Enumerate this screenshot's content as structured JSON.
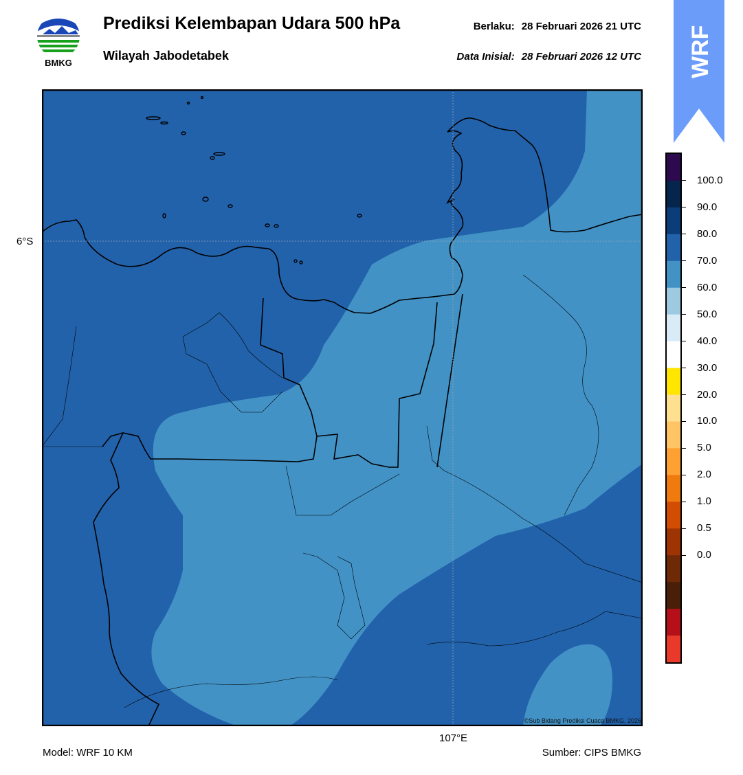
{
  "header": {
    "title": "Prediksi Kelembapan Udara 500 hPa",
    "subtitle": "Wilayah Jabodetabek",
    "valid_label": "Berlaku:",
    "valid_value": "28 Februari 2026 21 UTC",
    "init_label": "Data Inisial:",
    "init_value": "28 Februari 2026 12 UTC"
  },
  "logo": {
    "name": "BMKG",
    "icon": "bmkg-logo-icon"
  },
  "badge": {
    "text": "WRF",
    "color": "#6b9cf9"
  },
  "map": {
    "lat_label": "6°S",
    "lon_label": "107°E",
    "copyright": "©Sub Bidang Prediksi Cuaca BMKG, 2026",
    "fill_colors": {
      "dark": "#2262ab",
      "mid": "#4292c6"
    }
  },
  "colorbar": {
    "labels": [
      "100.0",
      "90.0",
      "80.0",
      "70.0",
      "60.0",
      "50.0",
      "40.0",
      "30.0",
      "20.0",
      "10.0",
      "5.0",
      "2.0",
      "1.0",
      "0.5",
      "0.0"
    ],
    "colors_top_to_bottom": [
      "#2d0a4e",
      "#06254c",
      "#0b3d78",
      "#2262ab",
      "#4292c6",
      "#9ecae1",
      "#d9ebf7",
      "#ffffff",
      "#ffe600",
      "#ffe090",
      "#ffc466",
      "#ffa033",
      "#ef7b0f",
      "#d24c04",
      "#9e3403",
      "#6e2a06",
      "#4a1f0a",
      "#b5101a",
      "#e8392b"
    ]
  },
  "footer": {
    "model": "Model: WRF 10 KM",
    "source": "Sumber: CIPS BMKG"
  }
}
